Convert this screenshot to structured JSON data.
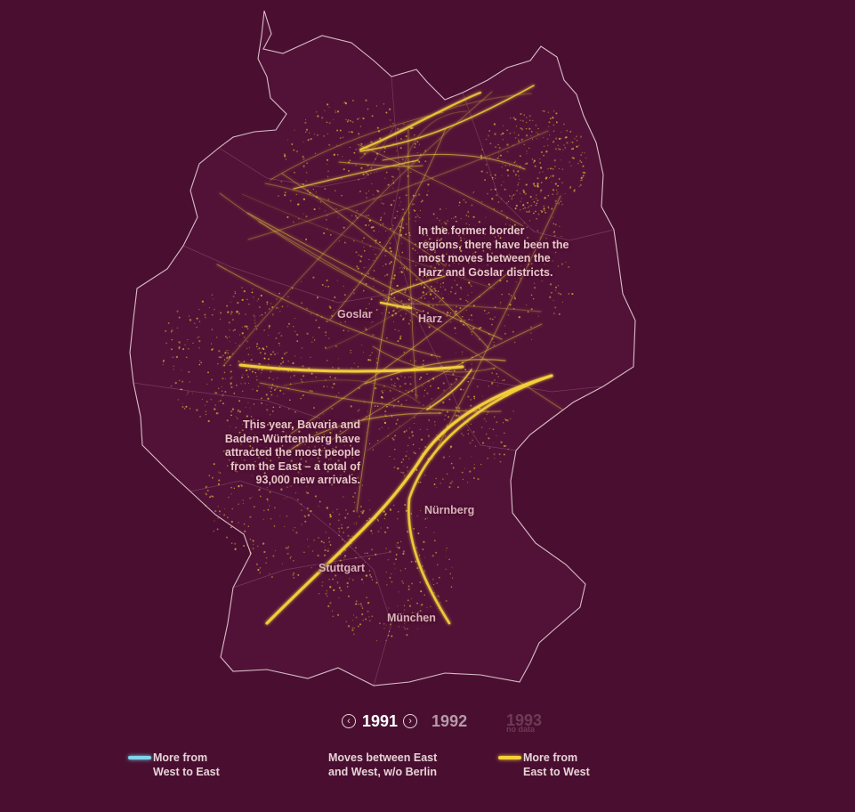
{
  "annotations": {
    "border": [
      "In the former border",
      "regions, there have been the",
      "most moves between the",
      "Harz and Goslar districts."
    ],
    "bavaria": [
      "This year, Bavaria and",
      "Baden-Württemberg have",
      "attracted the most people",
      "from the East – a total of",
      "93,000 new arrivals."
    ]
  },
  "cities": {
    "goslar": "Goslar",
    "harz": "Harz",
    "nurnberg": "Nürnberg",
    "stuttgart": "Stuttgart",
    "munchen": "München"
  },
  "timeline": {
    "current_year": "1991",
    "next_year": "1992",
    "faded_year": "1993",
    "faded_note": "no data"
  },
  "legend": {
    "west_to_east": [
      "More from",
      "West to East"
    ],
    "center": [
      "Moves between East",
      "and West, w/o Berlin"
    ],
    "east_to_west": [
      "More from",
      "East to West"
    ]
  },
  "colors": {
    "background": "#4a0f30",
    "west_to_east": "#7fd6ec",
    "east_to_west": "#f5d03a",
    "border": "#c7a6b4"
  },
  "icons": {
    "prev": "chevron-left-icon",
    "next": "chevron-right-icon"
  }
}
